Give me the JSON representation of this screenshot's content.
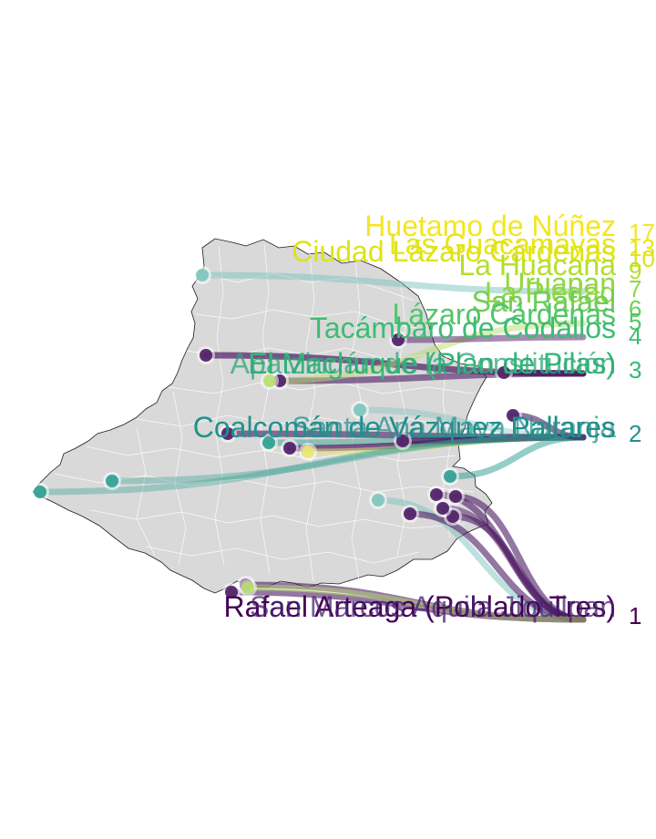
{
  "map": {
    "region": "Michoacán",
    "colors": {
      "land": "#d9d9d9",
      "border": "#ffffff",
      "outline": "#1a1a1a",
      "palette_low": "#440154",
      "palette_mid": "#21918c",
      "palette_high": "#fde725"
    }
  },
  "labels": [
    {
      "id": "huetamo",
      "text": "Huetamo de Núñez",
      "count": "17",
      "color": "#f4e61e"
    },
    {
      "id": "guacamayas",
      "text": "Las Guacamayas",
      "count": "13",
      "color": "#e9e51a"
    },
    {
      "id": "lazaro-cardenas-city",
      "text": "Ciudad Lázaro Cárdenas",
      "count": "10",
      "color": "#dde318"
    },
    {
      "id": "huacana",
      "text": "La Huacana",
      "count": "9",
      "color": "#b5de2b"
    },
    {
      "id": "uruapan",
      "text": "Uruapan",
      "count": "7",
      "color": "#90d743"
    },
    {
      "id": "la-piedad",
      "text": "La Piedad",
      "count": "7",
      "color": "#90d743"
    },
    {
      "id": "san-rafael",
      "text": "San Rafael",
      "count": "6",
      "color": "#6ece58"
    },
    {
      "id": "lazaro-cardenas",
      "text": "Lázaro Cárdenas",
      "count": "5",
      "color": "#52c569"
    },
    {
      "id": "tacambaro",
      "text": "Tacámbaro de Codallos",
      "count": "4",
      "color": "#3dbc74"
    },
    {
      "id": "machuque",
      "text": "El Machuque (Plan de Pilas)",
      "count": "3",
      "color": "#35b779"
    },
    {
      "id": "group-3b",
      "text": "Apatzingán de la Constitución",
      "count": "3",
      "color": "#35b779"
    },
    {
      "id": "coalcoman",
      "text": "Coalcomán de Vázquez Pallares",
      "count": "2",
      "color": "#21918c"
    },
    {
      "id": "group-2b",
      "text": "Santa Ana Maya Naranja",
      "count": "2",
      "color": "#228c8d"
    },
    {
      "id": "group-1",
      "text": "Rafael Arteaga (Poblado Tres)",
      "count": "1",
      "color": "#440154"
    },
    {
      "id": "group-1b",
      "text": "San Marcos Aquila Jiquilpan",
      "count": "1",
      "color": "#482173"
    }
  ],
  "count_labels": [
    "17",
    "13",
    "10",
    "9",
    "7",
    "7",
    "6",
    "5",
    "4",
    "3",
    "2",
    "1"
  ]
}
